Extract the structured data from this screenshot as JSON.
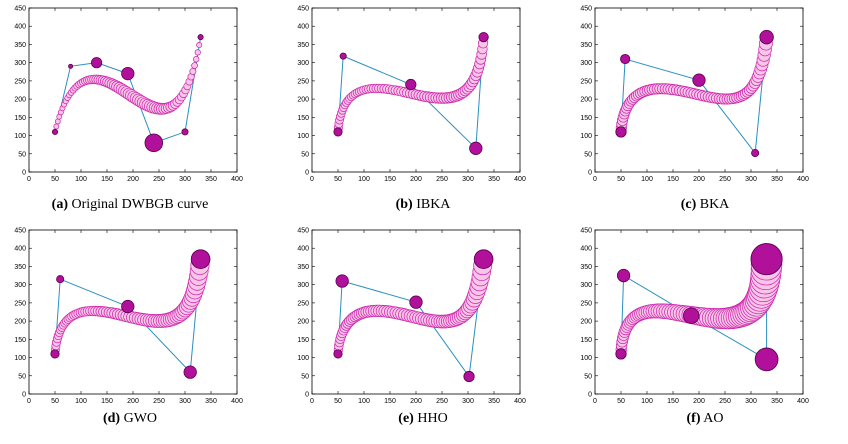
{
  "colors": {
    "curve_fill": "#f7c5e8",
    "curve_stroke": "#cc22aa",
    "disk_fill": "#b0109a",
    "disk_stroke": "#5a0050",
    "polygon": "#2a8fc0"
  },
  "chart_data": [
    {
      "type": "scatter",
      "caption_letter": "(a)",
      "caption_text": "Original DWBGB curve",
      "xlim": [
        0,
        400
      ],
      "ylim": [
        0,
        450
      ],
      "xticks": [
        "0",
        "50",
        "100",
        "150",
        "200",
        "250",
        "300",
        "350",
        "400"
      ],
      "yticks": [
        "0",
        "50",
        "100",
        "150",
        "200",
        "250",
        "300",
        "350",
        "400",
        "450"
      ],
      "control_points": [
        [
          50,
          110,
          5
        ],
        [
          80,
          290,
          4
        ],
        [
          130,
          300,
          10
        ],
        [
          190,
          270,
          12
        ],
        [
          240,
          80,
          17
        ],
        [
          300,
          110,
          6
        ],
        [
          330,
          370,
          5
        ]
      ]
    },
    {
      "type": "scatter",
      "caption_letter": "(b)",
      "caption_text": "IBKA",
      "xlim": [
        0,
        400
      ],
      "ylim": [
        0,
        450
      ],
      "xticks": [
        "0",
        "50",
        "100",
        "150",
        "200",
        "250",
        "300",
        "350",
        "400"
      ],
      "yticks": [
        "0",
        "50",
        "100",
        "150",
        "200",
        "250",
        "300",
        "350",
        "400",
        "450"
      ],
      "control_points": [
        [
          50,
          110,
          8
        ],
        [
          60,
          318,
          6
        ],
        [
          190,
          240,
          10
        ],
        [
          315,
          65,
          12
        ],
        [
          330,
          370,
          9
        ]
      ]
    },
    {
      "type": "scatter",
      "caption_letter": "(c)",
      "caption_text": "BKA",
      "xlim": [
        0,
        400
      ],
      "ylim": [
        0,
        450
      ],
      "xticks": [
        "0",
        "50",
        "100",
        "150",
        "200",
        "250",
        "300",
        "350",
        "400"
      ],
      "yticks": [
        "0",
        "50",
        "100",
        "150",
        "200",
        "250",
        "300",
        "350",
        "400",
        "450"
      ],
      "control_points": [
        [
          50,
          110,
          10
        ],
        [
          58,
          310,
          9
        ],
        [
          200,
          252,
          12
        ],
        [
          308,
          52,
          7
        ],
        [
          330,
          370,
          13
        ]
      ]
    },
    {
      "type": "scatter",
      "caption_letter": "(d)",
      "caption_text": "GWO",
      "xlim": [
        0,
        400
      ],
      "ylim": [
        0,
        450
      ],
      "xticks": [
        "0",
        "50",
        "100",
        "150",
        "200",
        "250",
        "300",
        "350",
        "400"
      ],
      "yticks": [
        "0",
        "50",
        "100",
        "150",
        "200",
        "250",
        "300",
        "350",
        "400",
        "450"
      ],
      "control_points": [
        [
          50,
          110,
          8
        ],
        [
          60,
          315,
          7
        ],
        [
          190,
          240,
          12
        ],
        [
          310,
          60,
          12
        ],
        [
          330,
          370,
          18
        ]
      ]
    },
    {
      "type": "scatter",
      "caption_letter": "(e)",
      "caption_text": "HHO",
      "xlim": [
        0,
        400
      ],
      "ylim": [
        0,
        450
      ],
      "xticks": [
        "0",
        "50",
        "100",
        "150",
        "200",
        "250",
        "300",
        "350",
        "400"
      ],
      "yticks": [
        "0",
        "50",
        "100",
        "150",
        "200",
        "250",
        "300",
        "350",
        "400",
        "450"
      ],
      "control_points": [
        [
          50,
          110,
          8
        ],
        [
          58,
          310,
          12
        ],
        [
          200,
          252,
          12
        ],
        [
          302,
          48,
          10
        ],
        [
          330,
          370,
          18
        ]
      ]
    },
    {
      "type": "scatter",
      "caption_letter": "(f)",
      "caption_text": "AO",
      "xlim": [
        0,
        400
      ],
      "ylim": [
        0,
        450
      ],
      "xticks": [
        "0",
        "50",
        "100",
        "150",
        "200",
        "250",
        "300",
        "350",
        "400"
      ],
      "yticks": [
        "0",
        "50",
        "100",
        "150",
        "200",
        "250",
        "300",
        "350",
        "400",
        "450"
      ],
      "control_points": [
        [
          50,
          110,
          10
        ],
        [
          55,
          325,
          12
        ],
        [
          185,
          215,
          15
        ],
        [
          330,
          95,
          22
        ],
        [
          330,
          370,
          30
        ]
      ]
    }
  ]
}
